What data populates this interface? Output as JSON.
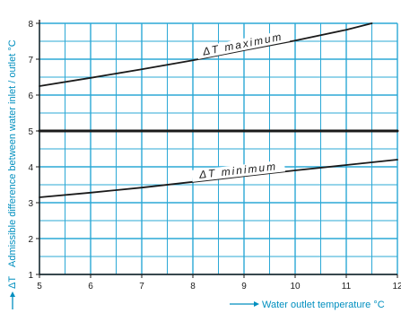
{
  "colors": {
    "grid": "#2ba8d6",
    "axis": "#1a1a1a",
    "line": "#1a1a1a",
    "accent": "#008fbf"
  },
  "chart_data": {
    "type": "line",
    "title": "",
    "xlabel": "Water outlet temperature °C",
    "ylabel": "Admissible difference between water inlet / outlet °C",
    "ylabel_symbol": "ΔT",
    "xlim": [
      5,
      12
    ],
    "ylim": [
      1,
      8
    ],
    "x_ticks": [
      5,
      6,
      7,
      8,
      9,
      10,
      11,
      12
    ],
    "y_ticks": [
      1,
      2,
      3,
      4,
      5,
      6,
      7,
      8
    ],
    "grid": true,
    "minor_grid_step_x": 0.5,
    "minor_grid_step_y": 0.5,
    "series": [
      {
        "name": "ΔT  maximum",
        "x": [
          5,
          6,
          7,
          8,
          9,
          10,
          11,
          11.5
        ],
        "y": [
          6.25,
          6.48,
          6.72,
          6.97,
          7.25,
          7.52,
          7.82,
          8.0
        ],
        "label_x": 9.0,
        "style": "solid"
      },
      {
        "name": "ΔT  minimum",
        "x": [
          5,
          6,
          7,
          8,
          9,
          10,
          11,
          12
        ],
        "y": [
          3.15,
          3.28,
          3.42,
          3.58,
          3.74,
          3.9,
          4.05,
          4.2
        ],
        "label_x": 8.9,
        "style": "solid"
      },
      {
        "name": "",
        "x": [
          5,
          12
        ],
        "y": [
          5,
          5
        ],
        "style": "bold"
      }
    ]
  }
}
